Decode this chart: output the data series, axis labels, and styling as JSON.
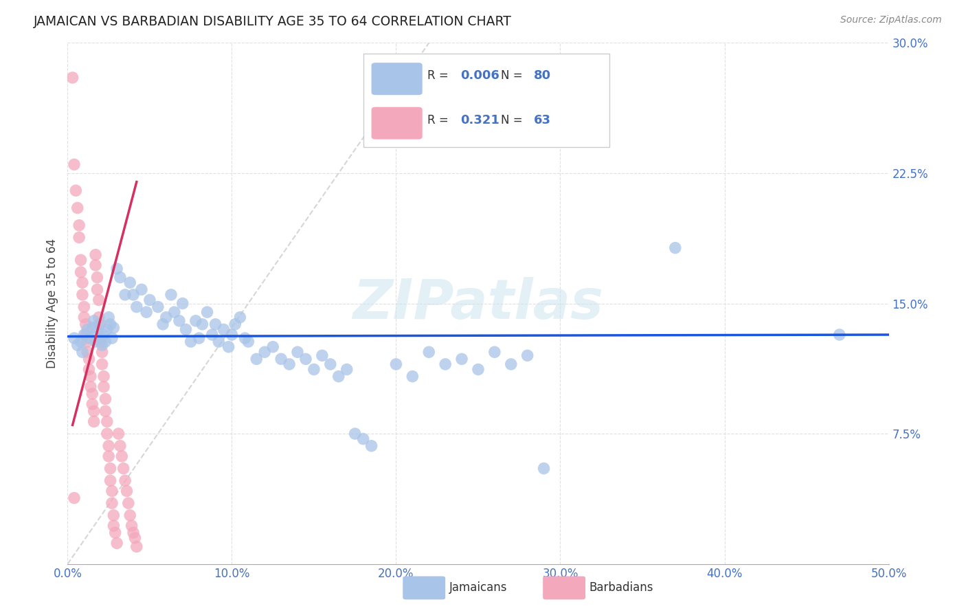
{
  "title": "JAMAICAN VS BARBADIAN DISABILITY AGE 35 TO 64 CORRELATION CHART",
  "source": "Source: ZipAtlas.com",
  "ylabel": "Disability Age 35 to 64",
  "watermark": "ZIPatlas",
  "xmin": 0.0,
  "xmax": 0.5,
  "ymin": 0.0,
  "ymax": 0.3,
  "xticks": [
    0.0,
    0.1,
    0.2,
    0.3,
    0.4,
    0.5
  ],
  "xtick_labels": [
    "0.0%",
    "10.0%",
    "20.0%",
    "30.0%",
    "40.0%",
    "50.0%"
  ],
  "ytick_vals": [
    0.075,
    0.15,
    0.225,
    0.3
  ],
  "ytick_labels": [
    "7.5%",
    "15.0%",
    "22.5%",
    "30.0%"
  ],
  "legend_r_jamaican": "0.006",
  "legend_n_jamaican": "80",
  "legend_r_barbadian": "0.321",
  "legend_n_barbadian": "63",
  "jamaican_color": "#a8c4e8",
  "barbadian_color": "#f4a8bc",
  "jamaican_line_color": "#1a56db",
  "barbadian_line_color": "#d63060",
  "ref_line_color": "#cccccc",
  "background_color": "#ffffff",
  "grid_color": "#dddddd",
  "jamaican_points": [
    [
      0.004,
      0.13
    ],
    [
      0.006,
      0.126
    ],
    [
      0.008,
      0.128
    ],
    [
      0.009,
      0.122
    ],
    [
      0.01,
      0.132
    ],
    [
      0.012,
      0.135
    ],
    [
      0.013,
      0.13
    ],
    [
      0.015,
      0.136
    ],
    [
      0.016,
      0.14
    ],
    [
      0.017,
      0.128
    ],
    [
      0.018,
      0.134
    ],
    [
      0.019,
      0.138
    ],
    [
      0.02,
      0.13
    ],
    [
      0.021,
      0.126
    ],
    [
      0.022,
      0.132
    ],
    [
      0.023,
      0.128
    ],
    [
      0.024,
      0.135
    ],
    [
      0.025,
      0.142
    ],
    [
      0.026,
      0.138
    ],
    [
      0.027,
      0.13
    ],
    [
      0.028,
      0.136
    ],
    [
      0.03,
      0.17
    ],
    [
      0.032,
      0.165
    ],
    [
      0.035,
      0.155
    ],
    [
      0.038,
      0.162
    ],
    [
      0.04,
      0.155
    ],
    [
      0.042,
      0.148
    ],
    [
      0.045,
      0.158
    ],
    [
      0.048,
      0.145
    ],
    [
      0.05,
      0.152
    ],
    [
      0.055,
      0.148
    ],
    [
      0.058,
      0.138
    ],
    [
      0.06,
      0.142
    ],
    [
      0.063,
      0.155
    ],
    [
      0.065,
      0.145
    ],
    [
      0.068,
      0.14
    ],
    [
      0.07,
      0.15
    ],
    [
      0.072,
      0.135
    ],
    [
      0.075,
      0.128
    ],
    [
      0.078,
      0.14
    ],
    [
      0.08,
      0.13
    ],
    [
      0.082,
      0.138
    ],
    [
      0.085,
      0.145
    ],
    [
      0.088,
      0.132
    ],
    [
      0.09,
      0.138
    ],
    [
      0.092,
      0.128
    ],
    [
      0.095,
      0.135
    ],
    [
      0.098,
      0.125
    ],
    [
      0.1,
      0.132
    ],
    [
      0.102,
      0.138
    ],
    [
      0.105,
      0.142
    ],
    [
      0.108,
      0.13
    ],
    [
      0.11,
      0.128
    ],
    [
      0.115,
      0.118
    ],
    [
      0.12,
      0.122
    ],
    [
      0.125,
      0.125
    ],
    [
      0.13,
      0.118
    ],
    [
      0.135,
      0.115
    ],
    [
      0.14,
      0.122
    ],
    [
      0.145,
      0.118
    ],
    [
      0.15,
      0.112
    ],
    [
      0.155,
      0.12
    ],
    [
      0.16,
      0.115
    ],
    [
      0.165,
      0.108
    ],
    [
      0.17,
      0.112
    ],
    [
      0.175,
      0.075
    ],
    [
      0.18,
      0.072
    ],
    [
      0.185,
      0.068
    ],
    [
      0.2,
      0.115
    ],
    [
      0.21,
      0.108
    ],
    [
      0.22,
      0.122
    ],
    [
      0.23,
      0.115
    ],
    [
      0.24,
      0.118
    ],
    [
      0.25,
      0.112
    ],
    [
      0.26,
      0.122
    ],
    [
      0.27,
      0.115
    ],
    [
      0.28,
      0.12
    ],
    [
      0.29,
      0.055
    ],
    [
      0.37,
      0.182
    ],
    [
      0.47,
      0.132
    ]
  ],
  "barbadian_points": [
    [
      0.003,
      0.28
    ],
    [
      0.004,
      0.23
    ],
    [
      0.005,
      0.215
    ],
    [
      0.006,
      0.205
    ],
    [
      0.007,
      0.195
    ],
    [
      0.007,
      0.188
    ],
    [
      0.008,
      0.175
    ],
    [
      0.008,
      0.168
    ],
    [
      0.009,
      0.162
    ],
    [
      0.009,
      0.155
    ],
    [
      0.01,
      0.148
    ],
    [
      0.01,
      0.142
    ],
    [
      0.011,
      0.138
    ],
    [
      0.011,
      0.132
    ],
    [
      0.012,
      0.128
    ],
    [
      0.012,
      0.122
    ],
    [
      0.013,
      0.118
    ],
    [
      0.013,
      0.112
    ],
    [
      0.014,
      0.108
    ],
    [
      0.014,
      0.102
    ],
    [
      0.015,
      0.098
    ],
    [
      0.015,
      0.092
    ],
    [
      0.016,
      0.088
    ],
    [
      0.016,
      0.082
    ],
    [
      0.017,
      0.178
    ],
    [
      0.017,
      0.172
    ],
    [
      0.018,
      0.165
    ],
    [
      0.018,
      0.158
    ],
    [
      0.019,
      0.152
    ],
    [
      0.019,
      0.142
    ],
    [
      0.02,
      0.138
    ],
    [
      0.02,
      0.128
    ],
    [
      0.021,
      0.122
    ],
    [
      0.021,
      0.115
    ],
    [
      0.022,
      0.108
    ],
    [
      0.022,
      0.102
    ],
    [
      0.023,
      0.095
    ],
    [
      0.023,
      0.088
    ],
    [
      0.024,
      0.082
    ],
    [
      0.024,
      0.075
    ],
    [
      0.025,
      0.068
    ],
    [
      0.025,
      0.062
    ],
    [
      0.026,
      0.055
    ],
    [
      0.026,
      0.048
    ],
    [
      0.027,
      0.042
    ],
    [
      0.027,
      0.035
    ],
    [
      0.028,
      0.028
    ],
    [
      0.028,
      0.022
    ],
    [
      0.029,
      0.018
    ],
    [
      0.03,
      0.012
    ],
    [
      0.031,
      0.075
    ],
    [
      0.032,
      0.068
    ],
    [
      0.033,
      0.062
    ],
    [
      0.034,
      0.055
    ],
    [
      0.035,
      0.048
    ],
    [
      0.036,
      0.042
    ],
    [
      0.037,
      0.035
    ],
    [
      0.038,
      0.028
    ],
    [
      0.039,
      0.022
    ],
    [
      0.04,
      0.018
    ],
    [
      0.041,
      0.015
    ],
    [
      0.042,
      0.01
    ],
    [
      0.004,
      0.038
    ]
  ],
  "jamaican_trend_x": [
    0.0,
    0.5
  ],
  "jamaican_trend_y": [
    0.131,
    0.132
  ],
  "barbadian_trend_x": [
    0.003,
    0.042
  ],
  "barbadian_trend_y": [
    0.08,
    0.22
  ]
}
